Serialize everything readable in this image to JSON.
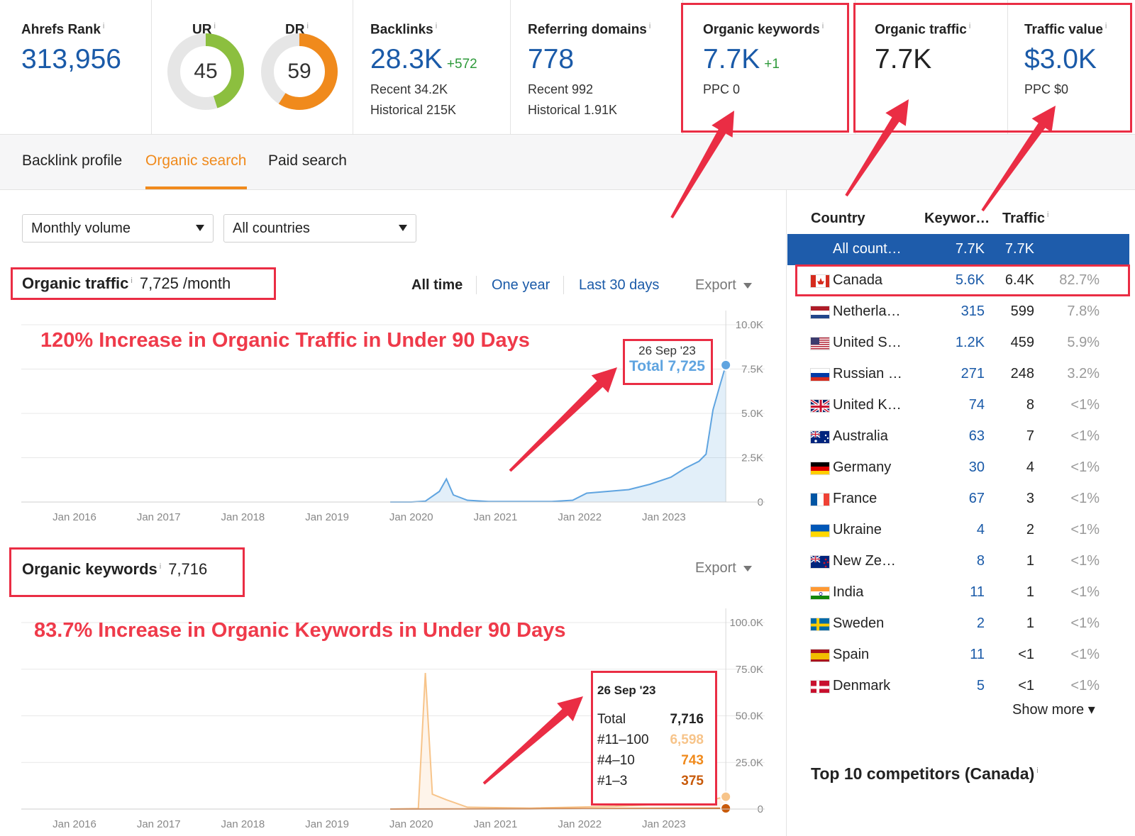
{
  "metrics": {
    "ahrefs_rank": {
      "label": "Ahrefs Rank",
      "value": "313,956"
    },
    "ur": {
      "label": "UR",
      "value": "45",
      "fraction": 0.45,
      "color": "#8cbf3f"
    },
    "dr": {
      "label": "DR",
      "value": "59",
      "fraction": 0.59,
      "color": "#f08a1c"
    },
    "backlinks": {
      "label": "Backlinks",
      "value": "28.3K",
      "delta": "+572",
      "recent": "Recent 34.2K",
      "historical": "Historical 215K"
    },
    "referring_domains": {
      "label": "Referring domains",
      "value": "778",
      "recent": "Recent 992",
      "historical": "Historical 1.91K"
    },
    "organic_keywords": {
      "label": "Organic keywords",
      "value": "7.7K",
      "delta": "+1",
      "ppc": "PPC 0"
    },
    "organic_traffic": {
      "label": "Organic traffic",
      "value": "7.7K"
    },
    "traffic_value": {
      "label": "Traffic value",
      "value": "$3.0K",
      "ppc": "PPC $0"
    },
    "info_glyph": "i"
  },
  "tabs": [
    {
      "label": "Backlink profile",
      "active": false
    },
    {
      "label": "Organic search",
      "active": true
    },
    {
      "label": "Paid search",
      "active": false
    }
  ],
  "filters": {
    "volume": "Monthly volume",
    "country": "All countries"
  },
  "traffic_section": {
    "title": "Organic traffic",
    "value": "7,725 /month",
    "ranges": [
      "All time",
      "One year",
      "Last 30 days"
    ],
    "active_range": "All time",
    "export": "Export",
    "headline": "120% Increase in Organic Traffic in Under 90 Days",
    "tooltip": {
      "date": "26 Sep '23",
      "total": "Total 7,725"
    }
  },
  "keywords_section": {
    "title": "Organic keywords",
    "value": "7,716",
    "export": "Export",
    "headline": "83.7% Increase in Organic Keywords in Under 90 Days",
    "tooltip": {
      "date": "26 Sep '23",
      "rows": [
        {
          "label": "Total",
          "value": "7,716",
          "color": "#222222"
        },
        {
          "label": "#11–100",
          "value": "6,598",
          "color": "#f7c48a"
        },
        {
          "label": "#4–10",
          "value": "743",
          "color": "#f08a1c"
        },
        {
          "label": "#1–3",
          "value": "375",
          "color": "#c85a0a"
        }
      ]
    }
  },
  "chart_data": [
    {
      "type": "area",
      "title": "Organic traffic",
      "x_ticks": [
        "Jan 2016",
        "Jan 2017",
        "Jan 2018",
        "Jan 2019",
        "Jan 2020",
        "Jan 2021",
        "Jan 2022",
        "Jan 2023"
      ],
      "y_ticks": [
        "10.0K",
        "7.5K",
        "5.0K",
        "2.5K",
        "0"
      ],
      "ylim": [
        0,
        10000
      ],
      "color": "#5fa4e0",
      "series": [
        {
          "points": [
            [
              "2019-10",
              0
            ],
            [
              "2020-01",
              0
            ],
            [
              "2020-03",
              50
            ],
            [
              "2020-05",
              600
            ],
            [
              "2020-06",
              1300
            ],
            [
              "2020-07",
              400
            ],
            [
              "2020-09",
              100
            ],
            [
              "2020-12",
              30
            ],
            [
              "2021-06",
              30
            ],
            [
              "2021-09",
              30
            ],
            [
              "2021-12",
              100
            ],
            [
              "2022-02",
              500
            ],
            [
              "2022-05",
              600
            ],
            [
              "2022-08",
              700
            ],
            [
              "2022-11",
              1000
            ],
            [
              "2023-02",
              1400
            ],
            [
              "2023-04",
              1900
            ],
            [
              "2023-06",
              2300
            ],
            [
              "2023-07",
              2700
            ],
            [
              "2023-08",
              5200
            ],
            [
              "2023-09",
              6600
            ],
            [
              "2023-09-26",
              7725
            ]
          ]
        }
      ]
    },
    {
      "type": "area",
      "title": "Organic keywords",
      "x_ticks": [
        "Jan 2016",
        "Jan 2017",
        "Jan 2018",
        "Jan 2019",
        "Jan 2020",
        "Jan 2021",
        "Jan 2022",
        "Jan 2023"
      ],
      "y_ticks": [
        "100.0K",
        "75.0K",
        "50.0K",
        "25.0K",
        "0"
      ],
      "ylim": [
        0,
        100000
      ],
      "series": [
        {
          "name": "#11–100",
          "color": "#f7c48a",
          "points": [
            [
              "2019-10",
              0
            ],
            [
              "2020-02",
              300
            ],
            [
              "2020-03",
              73000
            ],
            [
              "2020-04",
              8000
            ],
            [
              "2020-06",
              5000
            ],
            [
              "2020-09",
              1000
            ],
            [
              "2021-06",
              500
            ],
            [
              "2022-06",
              1500
            ],
            [
              "2023-06",
              3500
            ],
            [
              "2023-09-26",
              6598
            ]
          ]
        },
        {
          "name": "#1–3",
          "color": "#c85a0a",
          "points": [
            [
              "2019-10",
              0
            ],
            [
              "2021-06",
              100
            ],
            [
              "2023-09-26",
              375
            ]
          ]
        }
      ]
    }
  ],
  "countries_table": {
    "headers": {
      "country": "Country",
      "keywords": "Keywor…",
      "traffic": "Traffic"
    },
    "rows": [
      {
        "name": "All count…",
        "kw": "7.7K",
        "traffic": "7.7K",
        "pct": "",
        "flag": "none",
        "highlight": true
      },
      {
        "name": "Canada",
        "kw": "5.6K",
        "traffic": "6.4K",
        "pct": "82.7%",
        "flag": "canada"
      },
      {
        "name": "Netherla…",
        "kw": "315",
        "traffic": "599",
        "pct": "7.8%",
        "flag": "netherlands"
      },
      {
        "name": "United S…",
        "kw": "1.2K",
        "traffic": "459",
        "pct": "5.9%",
        "flag": "usa"
      },
      {
        "name": "Russian …",
        "kw": "271",
        "traffic": "248",
        "pct": "3.2%",
        "flag": "russia"
      },
      {
        "name": "United K…",
        "kw": "74",
        "traffic": "8",
        "pct": "<1%",
        "flag": "uk"
      },
      {
        "name": "Australia",
        "kw": "63",
        "traffic": "7",
        "pct": "<1%",
        "flag": "australia"
      },
      {
        "name": "Germany",
        "kw": "30",
        "traffic": "4",
        "pct": "<1%",
        "flag": "germany"
      },
      {
        "name": "France",
        "kw": "67",
        "traffic": "3",
        "pct": "<1%",
        "flag": "france"
      },
      {
        "name": "Ukraine",
        "kw": "4",
        "traffic": "2",
        "pct": "<1%",
        "flag": "ukraine"
      },
      {
        "name": "New Ze…",
        "kw": "8",
        "traffic": "1",
        "pct": "<1%",
        "flag": "newzealand"
      },
      {
        "name": "India",
        "kw": "11",
        "traffic": "1",
        "pct": "<1%",
        "flag": "india"
      },
      {
        "name": "Sweden",
        "kw": "2",
        "traffic": "1",
        "pct": "<1%",
        "flag": "sweden"
      },
      {
        "name": "Spain",
        "kw": "11",
        "traffic": "<1",
        "pct": "<1%",
        "flag": "spain"
      },
      {
        "name": "Denmark",
        "kw": "5",
        "traffic": "<1",
        "pct": "<1%",
        "flag": "denmark"
      }
    ],
    "show_more": "Show more ▾"
  },
  "competitors_title": "Top 10 competitors (Canada)",
  "annotation_color": "#ea2d44"
}
